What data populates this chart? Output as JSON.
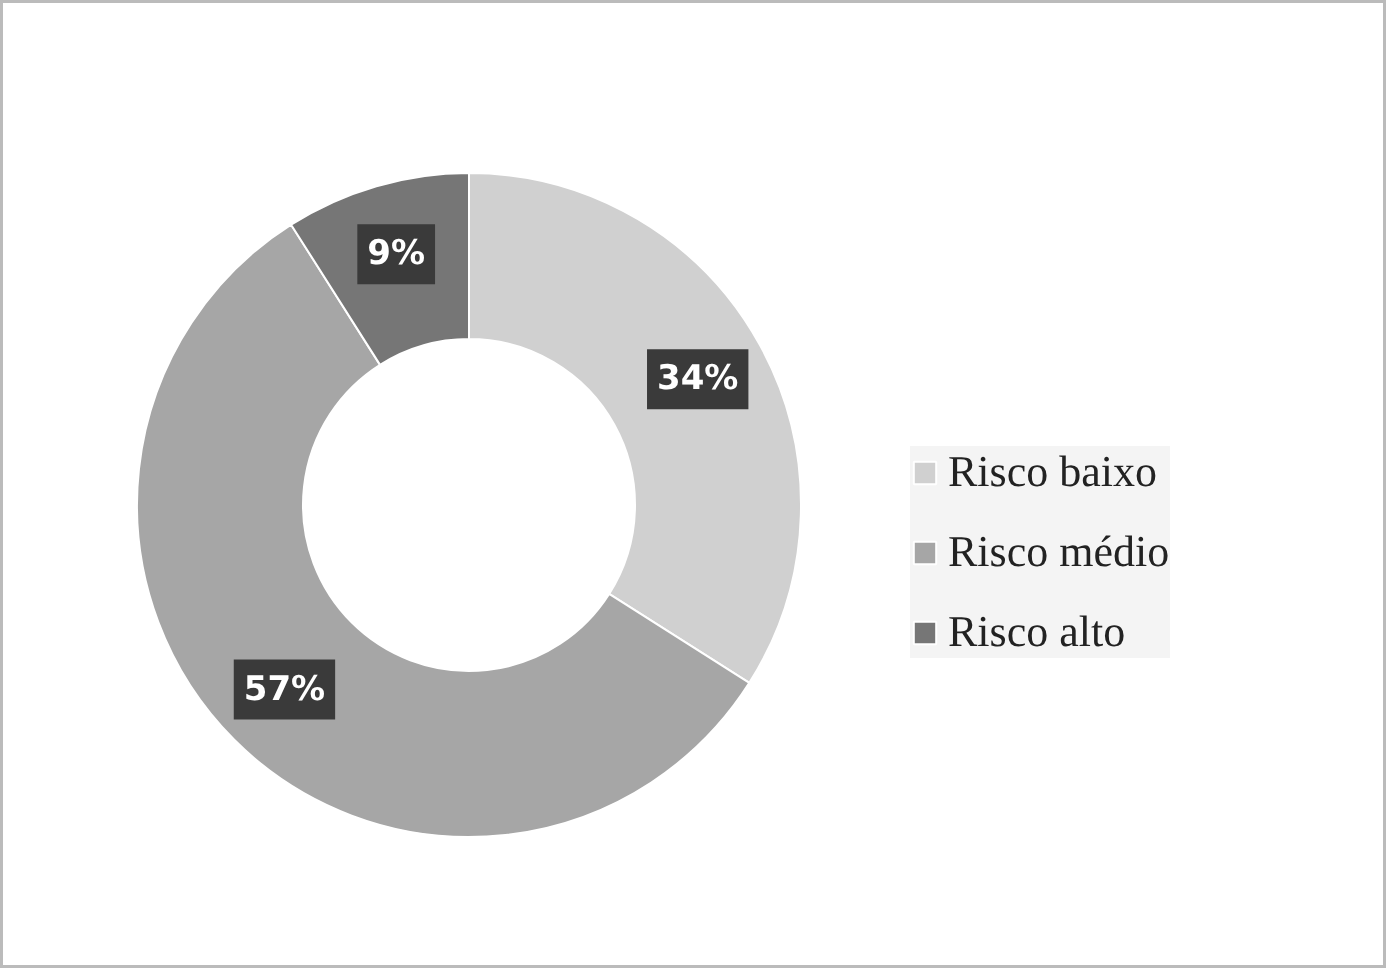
{
  "chart_data": {
    "type": "donut",
    "categories": [
      "Risco baixo",
      "Risco médio",
      "Risco alto"
    ],
    "values": [
      34,
      57,
      9
    ],
    "colors": [
      "#d0d0d0",
      "#a6a6a6",
      "#767676"
    ],
    "value_labels": [
      "34%",
      "57%",
      "9%"
    ],
    "legend": "right"
  }
}
